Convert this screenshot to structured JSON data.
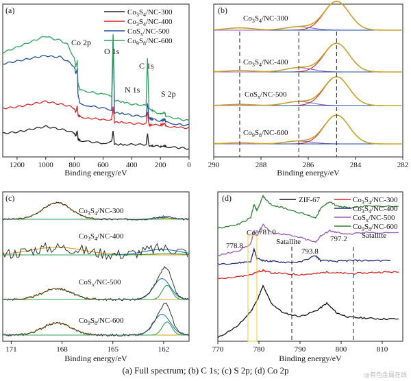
{
  "caption": "(a) Full spectrum; (b) C 1s; (c) S 2p; (d) Co 2p",
  "watermark": "@有色金属在线",
  "chart_data": [
    {
      "panel": "(a)",
      "type": "line",
      "xlabel": "Binding energy/eV",
      "xlim": [
        1300,
        0
      ],
      "x_ticks": [
        1200,
        1000,
        800,
        600,
        400,
        200,
        0
      ],
      "legend_position": "top-right",
      "annotations": [
        "Co 2p",
        "O 1s",
        "N 1s",
        "C 1s",
        "S 2p"
      ],
      "series": [
        {
          "name": "Co3S4/NC-300",
          "color": "#222222",
          "x": [
            1300,
            1200,
            1100,
            1000,
            950,
            900,
            850,
            800,
            790,
            780,
            775,
            760,
            700,
            600,
            540,
            530,
            520,
            450,
            400,
            300,
            290,
            280,
            250,
            200,
            170,
            160,
            100,
            50,
            0
          ],
          "y": [
            0.12,
            0.13,
            0.15,
            0.17,
            0.16,
            0.15,
            0.14,
            0.12,
            0.1,
            0.14,
            0.08,
            0.07,
            0.06,
            0.05,
            0.06,
            0.14,
            0.04,
            0.04,
            0.04,
            0.04,
            0.12,
            0.03,
            0.03,
            0.025,
            0.03,
            0.025,
            0.02,
            0.015,
            0.01
          ]
        },
        {
          "name": "Co3S4/NC-400",
          "color": "#d62728",
          "x": [
            1300,
            1200,
            1100,
            1000,
            950,
            900,
            850,
            800,
            790,
            780,
            775,
            760,
            700,
            600,
            540,
            530,
            520,
            450,
            400,
            300,
            290,
            280,
            250,
            200,
            170,
            160,
            100,
            50,
            0
          ],
          "y": [
            0.3,
            0.31,
            0.33,
            0.35,
            0.34,
            0.33,
            0.32,
            0.3,
            0.27,
            0.32,
            0.25,
            0.24,
            0.23,
            0.22,
            0.22,
            0.31,
            0.2,
            0.2,
            0.19,
            0.19,
            0.28,
            0.18,
            0.18,
            0.18,
            0.19,
            0.17,
            0.17,
            0.16,
            0.16
          ]
        },
        {
          "name": "CoSx/NC-500",
          "color": "#1f4e9a",
          "x": [
            1300,
            1200,
            1100,
            1000,
            950,
            900,
            850,
            800,
            790,
            780,
            775,
            760,
            700,
            600,
            540,
            530,
            520,
            450,
            400,
            300,
            290,
            280,
            250,
            200,
            170,
            160,
            100,
            50,
            0
          ],
          "y": [
            0.62,
            0.64,
            0.66,
            0.68,
            0.67,
            0.67,
            0.64,
            0.6,
            0.55,
            0.58,
            0.4,
            0.33,
            0.32,
            0.3,
            0.29,
            0.8,
            0.27,
            0.26,
            0.25,
            0.24,
            0.34,
            0.23,
            0.22,
            0.21,
            0.22,
            0.2,
            0.19,
            0.18,
            0.18
          ]
        },
        {
          "name": "Co9S8/NC-600",
          "color": "#2aa25a",
          "x": [
            1300,
            1200,
            1100,
            1000,
            950,
            900,
            850,
            800,
            790,
            780,
            775,
            760,
            700,
            600,
            540,
            530,
            520,
            450,
            400,
            300,
            290,
            280,
            250,
            200,
            170,
            160,
            100,
            50,
            0
          ],
          "y": [
            0.7,
            0.74,
            0.78,
            0.82,
            0.8,
            0.79,
            0.76,
            0.66,
            0.6,
            0.64,
            0.48,
            0.43,
            0.42,
            0.4,
            0.39,
            0.83,
            0.36,
            0.34,
            0.33,
            0.32,
            0.66,
            0.3,
            0.28,
            0.26,
            0.27,
            0.24,
            0.23,
            0.22,
            0.21
          ]
        }
      ]
    },
    {
      "panel": "(b)",
      "type": "line",
      "xlabel": "Binding energy/eV",
      "xlim": [
        290,
        282
      ],
      "x_ticks": [
        290,
        288,
        286,
        284,
        282
      ],
      "dashed_lines_x": [
        288.9,
        286.4,
        284.8
      ],
      "sub_labels": [
        "Co3S4/NC-300",
        "Co3S4/NC-400",
        "CoSx/NC-500",
        "Co9S8/NC-600"
      ],
      "peaks": [
        {
          "center": 284.8,
          "color": "#d62728"
        },
        {
          "center": 286.4,
          "color": "#9b59b6"
        },
        {
          "center": 288.9,
          "color": "#1f4e9a"
        }
      ]
    },
    {
      "panel": "(c)",
      "type": "line",
      "xlabel": "Binding energy/eV",
      "xlim": [
        171.5,
        160.5
      ],
      "x_ticks": [
        171,
        168,
        165,
        162
      ],
      "sub_labels": [
        "Co3S4/NC-300",
        "Co3S4/NC-400",
        "CoSx/NC-500",
        "Co9S8/NC-600"
      ],
      "peaks": [
        {
          "center": 168.3,
          "color": "#d4a017"
        },
        {
          "center": 162.1,
          "color": "#1f77b4"
        },
        {
          "center": 161.8,
          "color": "#2aa25a"
        }
      ]
    },
    {
      "panel": "(d)",
      "type": "line",
      "xlabel": "Binding energy/eV",
      "xlim": [
        770,
        815
      ],
      "x_ticks": [
        770,
        780,
        790,
        800,
        810
      ],
      "legend_position": "top",
      "dashed_lines_x": [
        788,
        803
      ],
      "annotations": [
        "Co³⁺",
        "778.8",
        "781.0",
        "Satallite",
        "793.8",
        "797.2",
        "Satallite"
      ],
      "series": [
        {
          "name": "ZIF-67",
          "color": "#111111",
          "x": [
            770,
            775,
            778,
            779.5,
            781,
            783,
            786,
            790,
            794,
            796.5,
            799,
            802,
            806,
            810,
            814
          ],
          "y": [
            0.0,
            0.15,
            0.32,
            0.45,
            0.63,
            0.42,
            0.3,
            0.26,
            0.33,
            0.42,
            0.3,
            0.25,
            0.24,
            0.23,
            0.23
          ]
        },
        {
          "name": "Co3S4/NC-300",
          "color": "#d62728",
          "x": [
            770,
            775,
            778,
            779.5,
            781,
            783,
            786,
            790,
            794,
            796.5,
            799,
            802,
            806,
            810,
            814
          ],
          "y": [
            0.72,
            0.74,
            0.77,
            0.8,
            0.82,
            0.79,
            0.78,
            0.77,
            0.78,
            0.8,
            0.79,
            0.78,
            0.79,
            0.8,
            0.8
          ]
        },
        {
          "name": "Co3S4/NC-400",
          "color": "#1f2a7a",
          "x": [
            770,
            775,
            778,
            778.8,
            779.5,
            781,
            783,
            786,
            790,
            793.8,
            795,
            799,
            802,
            806,
            812
          ],
          "y": [
            0.9,
            0.91,
            0.93,
            1.08,
            0.97,
            0.94,
            0.93,
            0.92,
            0.92,
            1.0,
            0.94,
            0.93,
            0.94,
            0.94,
            0.94
          ]
        },
        {
          "name": "CoSx/NC-500",
          "color": "#9b59b6",
          "x": [
            770,
            775,
            778,
            778.8,
            779.5,
            781,
            783,
            786,
            790,
            793.8,
            795,
            797.2,
            799,
            802,
            806,
            814
          ],
          "y": [
            1.0,
            1.06,
            1.14,
            1.3,
            1.24,
            1.38,
            1.28,
            1.26,
            1.22,
            1.16,
            1.24,
            1.3,
            1.28,
            1.26,
            1.28,
            1.28
          ]
        },
        {
          "name": "Co9S8/NC-600",
          "color": "#2e7d32",
          "x": [
            770,
            775,
            778,
            778.8,
            779.5,
            781,
            783,
            786,
            790,
            793.8,
            795,
            797.2,
            799,
            802,
            806,
            814
          ],
          "y": [
            1.33,
            1.38,
            1.46,
            1.62,
            1.55,
            1.72,
            1.62,
            1.58,
            1.52,
            1.46,
            1.57,
            1.66,
            1.6,
            1.58,
            1.6,
            1.6
          ]
        }
      ]
    }
  ],
  "labels": {
    "a_panel": "(a)",
    "b_panel": "(b)",
    "c_panel": "(c)",
    "d_panel": "(d)",
    "xlabel": "Binding energy/eV",
    "co2p": "Co 2p",
    "o1s": "O 1s",
    "n1s": "N 1s",
    "c1s": "C 1s",
    "s2p": "S 2p",
    "co3plus": "Co³⁺",
    "p7788": "778.8",
    "p7810": "781.0",
    "p7938": "793.8",
    "p7972": "797.2",
    "sat": "Satallite",
    "zif": "ZIF-67"
  }
}
